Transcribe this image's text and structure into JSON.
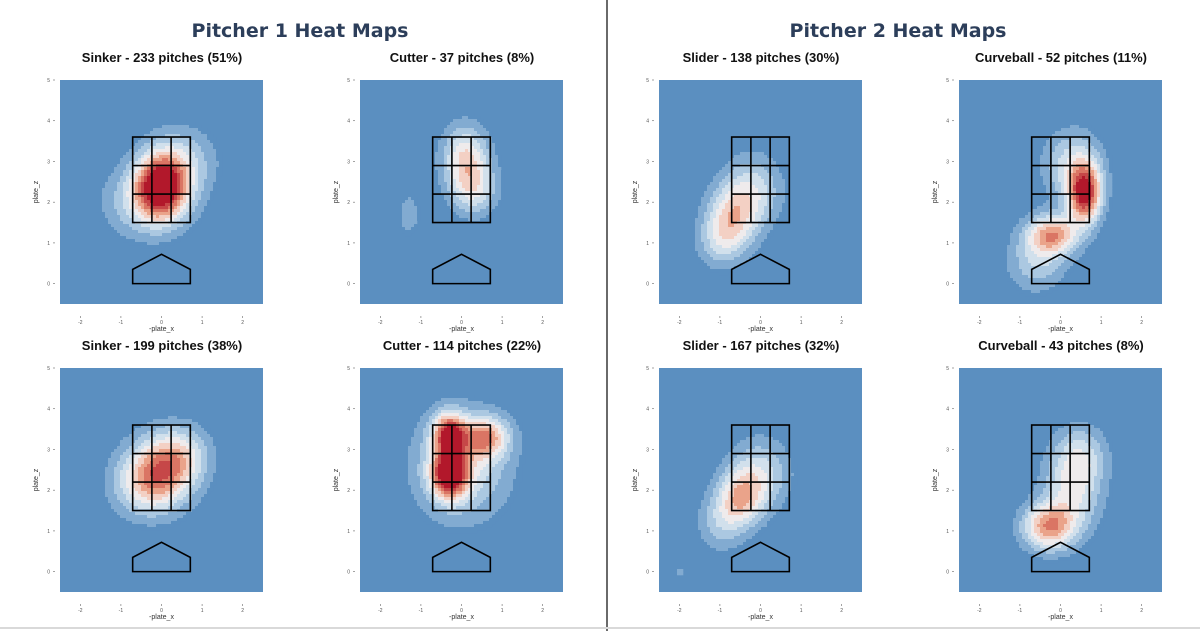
{
  "titles": {
    "pitcher1": "Pitcher 1 Heat Maps",
    "pitcher2": "Pitcher 2 Heat Maps"
  },
  "colors": {
    "background": "#5b8fc0",
    "low": "#ffffff",
    "high": "#b2182b",
    "zone": "#000000"
  },
  "chart_data": [
    {
      "type": "heatmap",
      "pitcher": "Pitcher 1",
      "title": "Sinker - 233 pitches (51%)",
      "xlabel": "-plate_x",
      "ylabel": "plate_z",
      "xlim": [
        -2.5,
        2.5
      ],
      "ylim": [
        -0.5,
        5
      ],
      "xticks": [
        -2,
        -1,
        0,
        1,
        2
      ],
      "yticks": [
        0,
        1,
        2,
        3,
        4,
        5
      ],
      "density_peaks": [
        {
          "x": 0.0,
          "z": 2.4,
          "intensity": 1.0,
          "sx": 0.45,
          "sz": 0.55
        },
        {
          "x": -0.4,
          "z": 2.0,
          "intensity": 0.35,
          "sx": 0.7,
          "sz": 0.6
        },
        {
          "x": 0.5,
          "z": 3.0,
          "intensity": 0.3,
          "sx": 0.6,
          "sz": 0.6
        }
      ]
    },
    {
      "type": "heatmap",
      "pitcher": "Pitcher 1",
      "title": "Cutter - 37 pitches (8%)",
      "xlabel": "-plate_x",
      "ylabel": "plate_z",
      "xlim": [
        -2.5,
        2.5
      ],
      "ylim": [
        -0.5,
        5
      ],
      "xticks": [
        -2,
        -1,
        0,
        1,
        2
      ],
      "yticks": [
        0,
        1,
        2,
        3,
        4,
        5
      ],
      "density_peaks": [
        {
          "x": 0.1,
          "z": 3.1,
          "intensity": 0.55,
          "sx": 0.4,
          "sz": 0.55
        },
        {
          "x": 0.3,
          "z": 2.3,
          "intensity": 0.4,
          "sx": 0.4,
          "sz": 0.45
        },
        {
          "x": -1.3,
          "z": 1.7,
          "intensity": 0.18,
          "sx": 0.2,
          "sz": 0.4
        }
      ]
    },
    {
      "type": "heatmap",
      "pitcher": "Pitcher 1",
      "title": "Slider - 138 pitches (30%)",
      "xlabel": "-plate_x",
      "ylabel": "plate_z",
      "xlim": [
        -2.5,
        2.5
      ],
      "ylim": [
        -0.5,
        5
      ],
      "xticks": [
        -2,
        -1,
        0,
        1,
        2
      ],
      "yticks": [
        0,
        1,
        2,
        3,
        4,
        5
      ],
      "density_peaks": [
        {
          "x": -0.7,
          "z": 1.6,
          "intensity": 0.5,
          "sx": 0.45,
          "sz": 0.55
        },
        {
          "x": -0.2,
          "z": 2.3,
          "intensity": 0.38,
          "sx": 0.5,
          "sz": 0.6
        },
        {
          "x": -1.0,
          "z": 1.0,
          "intensity": 0.25,
          "sx": 0.4,
          "sz": 0.45
        }
      ]
    },
    {
      "type": "heatmap",
      "pitcher": "Pitcher 1",
      "title": "Curveball - 52 pitches (11%)",
      "xlabel": "-plate_x",
      "ylabel": "plate_z",
      "xlim": [
        -2.5,
        2.5
      ],
      "ylim": [
        -0.5,
        5
      ],
      "xticks": [
        -2,
        -1,
        0,
        1,
        2
      ],
      "yticks": [
        0,
        1,
        2,
        3,
        4,
        5
      ],
      "density_peaks": [
        {
          "x": 0.6,
          "z": 2.2,
          "intensity": 1.0,
          "sx": 0.28,
          "sz": 0.5
        },
        {
          "x": -0.2,
          "z": 1.2,
          "intensity": 0.72,
          "sx": 0.45,
          "sz": 0.35
        },
        {
          "x": 0.3,
          "z": 2.9,
          "intensity": 0.4,
          "sx": 0.5,
          "sz": 0.6
        },
        {
          "x": -0.6,
          "z": 0.5,
          "intensity": 0.3,
          "sx": 0.5,
          "sz": 0.5
        }
      ]
    },
    {
      "type": "heatmap",
      "pitcher": "Pitcher 2",
      "title": "Sinker - 199 pitches (38%)",
      "xlabel": "-plate_x",
      "ylabel": "plate_z",
      "xlim": [
        -2.5,
        2.5
      ],
      "ylim": [
        -0.5,
        5
      ],
      "xticks": [
        -2,
        -1,
        0,
        1,
        2
      ],
      "yticks": [
        0,
        1,
        2,
        3,
        4,
        5
      ],
      "density_peaks": [
        {
          "x": 0.0,
          "z": 2.5,
          "intensity": 0.6,
          "sx": 0.6,
          "sz": 0.6
        },
        {
          "x": -0.4,
          "z": 2.1,
          "intensity": 0.35,
          "sx": 0.6,
          "sz": 0.55
        },
        {
          "x": 0.5,
          "z": 2.9,
          "intensity": 0.3,
          "sx": 0.5,
          "sz": 0.5
        }
      ]
    },
    {
      "type": "heatmap",
      "pitcher": "Pitcher 2",
      "title": "Cutter - 114 pitches (22%)",
      "xlabel": "-plate_x",
      "ylabel": "plate_z",
      "xlim": [
        -2.5,
        2.5
      ],
      "ylim": [
        -0.5,
        5
      ],
      "xticks": [
        -2,
        -1,
        0,
        1,
        2
      ],
      "yticks": [
        0,
        1,
        2,
        3,
        4,
        5
      ],
      "density_peaks": [
        {
          "x": -0.3,
          "z": 2.4,
          "intensity": 1.0,
          "sx": 0.3,
          "sz": 0.4
        },
        {
          "x": -0.3,
          "z": 3.4,
          "intensity": 0.85,
          "sx": 0.28,
          "sz": 0.35
        },
        {
          "x": 0.6,
          "z": 3.3,
          "intensity": 0.6,
          "sx": 0.4,
          "sz": 0.35
        },
        {
          "x": 0.0,
          "z": 2.6,
          "intensity": 0.45,
          "sx": 0.8,
          "sz": 0.9
        }
      ]
    },
    {
      "type": "heatmap",
      "pitcher": "Pitcher 2",
      "title": "Slider - 167 pitches (32%)",
      "xlabel": "-plate_x",
      "ylabel": "plate_z",
      "xlim": [
        -2.5,
        2.5
      ],
      "ylim": [
        -0.5,
        5
      ],
      "xticks": [
        -2,
        -1,
        0,
        1,
        2
      ],
      "yticks": [
        0,
        1,
        2,
        3,
        4,
        5
      ],
      "density_peaks": [
        {
          "x": -0.5,
          "z": 1.8,
          "intensity": 0.55,
          "sx": 0.4,
          "sz": 0.5
        },
        {
          "x": 0.0,
          "z": 2.4,
          "intensity": 0.38,
          "sx": 0.5,
          "sz": 0.6
        },
        {
          "x": -1.0,
          "z": 1.2,
          "intensity": 0.25,
          "sx": 0.4,
          "sz": 0.5
        },
        {
          "x": -2.0,
          "z": 0.0,
          "intensity": 0.15,
          "sx": 0.1,
          "sz": 0.1
        }
      ]
    },
    {
      "type": "heatmap",
      "pitcher": "Pitcher 2",
      "title": "Curveball - 43 pitches (8%)",
      "xlabel": "-plate_x",
      "ylabel": "plate_z",
      "xlim": [
        -2.5,
        2.5
      ],
      "ylim": [
        -0.5,
        5
      ],
      "xticks": [
        -2,
        -1,
        0,
        1,
        2
      ],
      "yticks": [
        0,
        1,
        2,
        3,
        4,
        5
      ],
      "density_peaks": [
        {
          "x": -0.3,
          "z": 1.1,
          "intensity": 0.72,
          "sx": 0.45,
          "sz": 0.4
        },
        {
          "x": 0.3,
          "z": 2.0,
          "intensity": 0.45,
          "sx": 0.5,
          "sz": 0.7
        },
        {
          "x": 0.5,
          "z": 2.9,
          "intensity": 0.3,
          "sx": 0.45,
          "sz": 0.5
        }
      ]
    }
  ]
}
